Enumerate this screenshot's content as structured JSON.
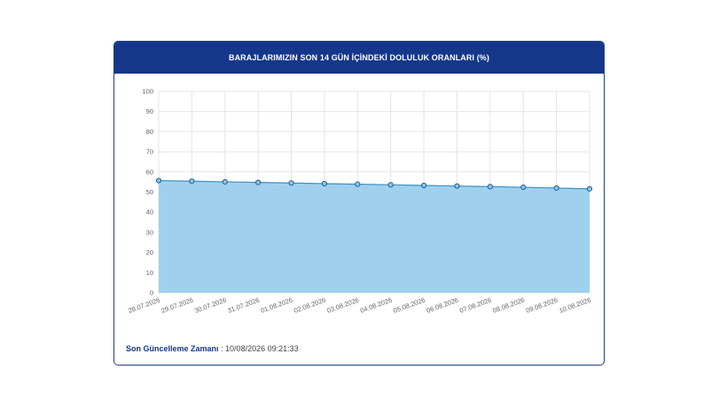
{
  "header": {
    "title": "BARAJLARIMIZIN SON 14 GÜN İÇİNDEKİ DOLULUK ORANLARI (%)"
  },
  "footer": {
    "label": "Son Güncelleme Zamanı",
    "separator": " : ",
    "value": "10/08/2026 09:21:33"
  },
  "chart_data": {
    "type": "area",
    "categories": [
      "28.07.2026",
      "29.07.2026",
      "30.07.2026",
      "31.07.2026",
      "01.08.2026",
      "02.08.2026",
      "03.08.2026",
      "04.08.2026",
      "05.08.2026",
      "06.08.2026",
      "07.08.2026",
      "08.08.2026",
      "09.08.2026",
      "10.08.2026"
    ],
    "values": [
      55.7,
      55.4,
      55.1,
      54.8,
      54.5,
      54.2,
      53.9,
      53.6,
      53.3,
      53.0,
      52.7,
      52.4,
      52.0,
      51.6
    ],
    "ylim": [
      0,
      100
    ],
    "yticks": [
      0,
      10,
      20,
      30,
      40,
      50,
      60,
      70,
      80,
      90,
      100
    ],
    "grid": true,
    "colors": {
      "fill": "#9fd1ee",
      "line": "#3f8fc4",
      "marker_fill": "#8ec4e6",
      "marker_stroke": "#1f5e96",
      "grid": "#e4e4e4"
    }
  }
}
